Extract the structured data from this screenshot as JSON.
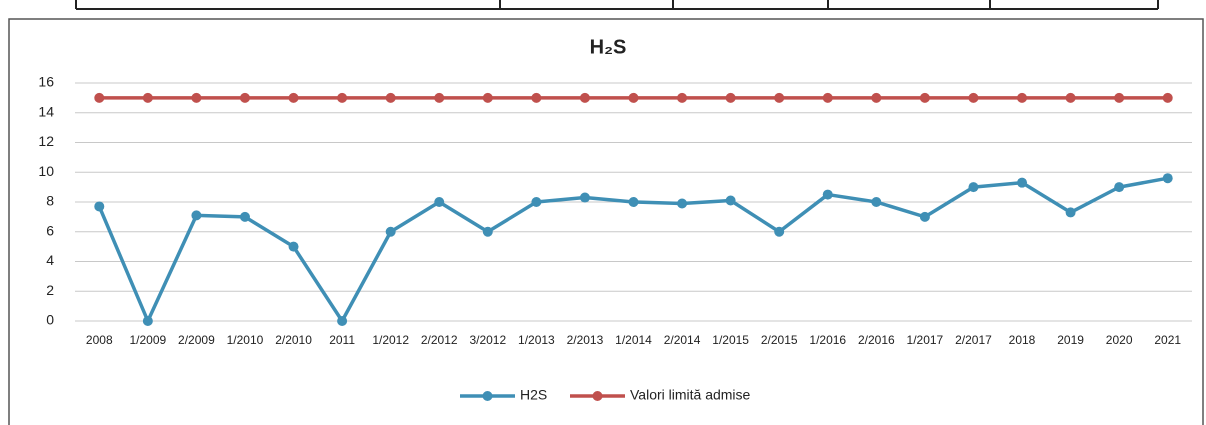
{
  "chart_data": {
    "type": "line",
    "title": "H₂S",
    "categories": [
      "2008",
      "1/2009",
      "2/2009",
      "1/2010",
      "2/2010",
      "2011",
      "1/2012",
      "2/2012",
      "3/2012",
      "1/2013",
      "2/2013",
      "1/2014",
      "2/2014",
      "1/2015",
      "2/2015",
      "1/2016",
      "2/2016",
      "1/2017",
      "2/2017",
      "2018",
      "2019",
      "2020",
      "2021"
    ],
    "series": [
      {
        "name": "H2S",
        "color": "#3f8fb5",
        "values": [
          7.7,
          0,
          7.1,
          7,
          5,
          0,
          6,
          8,
          6,
          8,
          8.3,
          8,
          7.9,
          8.1,
          6,
          8.5,
          8,
          7,
          9,
          9.3,
          7.3,
          9,
          9.6
        ]
      },
      {
        "name": "Valori limită admise",
        "color": "#c0504d",
        "values": [
          15,
          15,
          15,
          15,
          15,
          15,
          15,
          15,
          15,
          15,
          15,
          15,
          15,
          15,
          15,
          15,
          15,
          15,
          15,
          15,
          15,
          15,
          15
        ]
      }
    ],
    "ylim": [
      0,
      16
    ],
    "yticks": [
      0,
      2,
      4,
      6,
      8,
      10,
      12,
      14,
      16
    ],
    "grid": true,
    "legend": "bottom"
  }
}
